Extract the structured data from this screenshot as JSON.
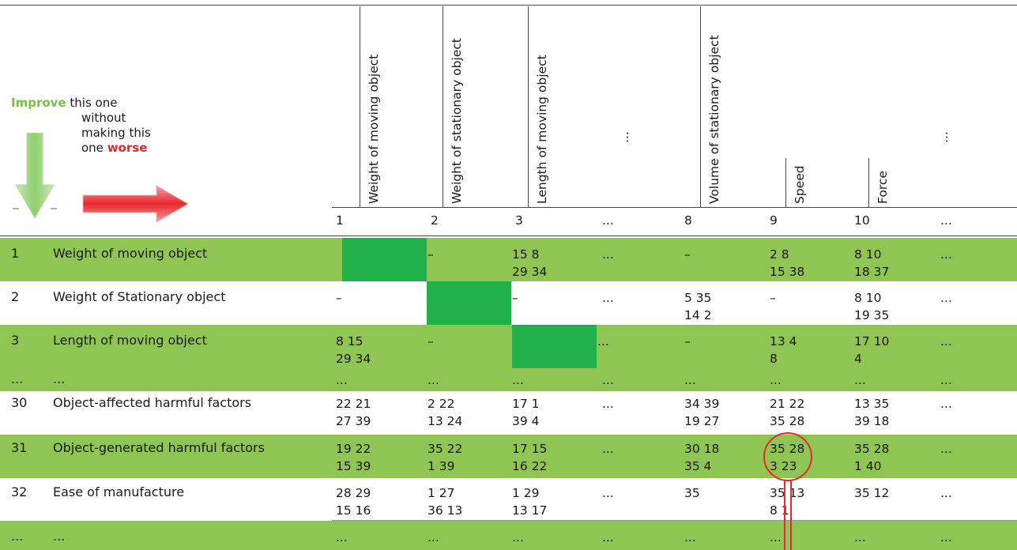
{
  "legend": {
    "improve_word": "Improve",
    "line1_rest": "this one",
    "line2": "without",
    "line3": "making this",
    "line4_prefix": "one",
    "worse_word": "worse",
    "improve_color": "#7ac142",
    "worse_color": "#e8282e"
  },
  "columns": [
    {
      "header": "Weight of moving object",
      "number": "1"
    },
    {
      "header": "Weight of stationary object",
      "number": "2"
    },
    {
      "header": "Length of moving object",
      "number": "3"
    },
    {
      "header": "...",
      "number": "..."
    },
    {
      "header": "Volume of stationary object",
      "number": "8"
    },
    {
      "header": "Speed",
      "number": "9"
    },
    {
      "header": "Force",
      "number": "10"
    },
    {
      "header": "...",
      "number": "..."
    }
  ],
  "rows": [
    {
      "no": "1",
      "label": "Weight of moving object",
      "cells": [
        [
          "",
          ""
        ],
        [
          "–",
          ""
        ],
        [
          "15 8",
          "29 34"
        ],
        [
          "...",
          ""
        ],
        [
          "–",
          ""
        ],
        [
          "2 8",
          "15 38"
        ],
        [
          "8 10",
          "18 37"
        ],
        [
          "...",
          ""
        ]
      ]
    },
    {
      "no": "2",
      "label": "Weight of Stationary object",
      "cells": [
        [
          "–",
          ""
        ],
        [
          "",
          ""
        ],
        [
          "–",
          ""
        ],
        [
          "...",
          ""
        ],
        [
          "5 35",
          "14 2"
        ],
        [
          "–",
          ""
        ],
        [
          "8 10",
          "19 35"
        ],
        [
          "...",
          ""
        ]
      ]
    },
    {
      "no": "3",
      "label": "Length of moving object",
      "cells": [
        [
          "8 15",
          "29 34"
        ],
        [
          "–",
          ""
        ],
        [
          "",
          ""
        ],
        [
          "...",
          ""
        ],
        [
          "–",
          ""
        ],
        [
          "13 4",
          "8"
        ],
        [
          "17 10",
          "4"
        ],
        [
          "...",
          ""
        ]
      ]
    },
    {
      "no": "...",
      "label": "...",
      "cells": [
        [
          "...",
          ""
        ],
        [
          "...",
          ""
        ],
        [
          "...",
          ""
        ],
        [
          "...",
          ""
        ],
        [
          "...",
          ""
        ],
        [
          "...",
          ""
        ],
        [
          "...",
          ""
        ],
        [
          "...",
          ""
        ]
      ]
    },
    {
      "no": "30",
      "label": "Object-affected harmful factors",
      "cells": [
        [
          "22 21",
          "27 39"
        ],
        [
          "2 22",
          "13 24"
        ],
        [
          "17 1",
          "39 4"
        ],
        [
          "...",
          ""
        ],
        [
          "34 39",
          "19 27"
        ],
        [
          "21 22",
          "35 28"
        ],
        [
          "13 35",
          "39 18"
        ],
        [
          "...",
          ""
        ]
      ]
    },
    {
      "no": "31",
      "label": "Object-generated harmful factors",
      "cells": [
        [
          "19 22",
          "15 39"
        ],
        [
          "35 22",
          "1 39"
        ],
        [
          "17 15",
          "16 22"
        ],
        [
          "...",
          ""
        ],
        [
          "30 18",
          "35 4"
        ],
        [
          "35 28",
          "3 23"
        ],
        [
          "35 28",
          "1 40"
        ],
        [
          "...",
          ""
        ]
      ]
    },
    {
      "no": "32",
      "label": "Ease of manufacture",
      "cells": [
        [
          "28 29",
          "15 16"
        ],
        [
          "1 27",
          "36 13"
        ],
        [
          "1 29",
          "13 17"
        ],
        [
          "...",
          ""
        ],
        [
          "35",
          ""
        ],
        [
          "35 13",
          "8 1"
        ],
        [
          "35 12",
          ""
        ],
        [
          "...",
          ""
        ]
      ]
    },
    {
      "no": "...",
      "label": "...",
      "cells": [
        [
          "...",
          ""
        ],
        [
          "...",
          ""
        ],
        [
          "...",
          ""
        ],
        [
          "...",
          ""
        ],
        [
          "...",
          ""
        ],
        [
          "...",
          ""
        ],
        [
          "...",
          ""
        ],
        [
          "...",
          ""
        ]
      ]
    }
  ],
  "colors": {
    "row_green": "#8fc552",
    "diagonal_green": "#22b04b",
    "highlight_red": "#e8282e"
  }
}
